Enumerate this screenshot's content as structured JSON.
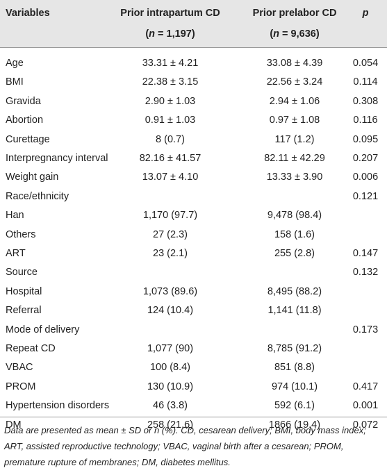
{
  "table": {
    "header": [
      {
        "label": "Variables"
      },
      {
        "label": "Prior intrapartum CD",
        "n": {
          "open": "(",
          "var": "n",
          "rest": " = 1,197)"
        }
      },
      {
        "label": "Prior prelabor CD",
        "n": {
          "open": "(",
          "var": "n",
          "rest": " = 9,636)"
        }
      },
      {
        "label": "p"
      }
    ],
    "rows": [
      [
        "Age",
        "33.31 ± 4.21",
        "33.08 ± 4.39",
        "0.054"
      ],
      [
        "BMI",
        "22.38 ± 3.15",
        "22.56 ± 3.24",
        "0.114"
      ],
      [
        "Gravida",
        "2.90 ± 1.03",
        "2.94 ± 1.06",
        "0.308"
      ],
      [
        "Abortion",
        "0.91 ± 1.03",
        "0.97 ± 1.08",
        "0.116"
      ],
      [
        "Curettage",
        "8 (0.7)",
        "117 (1.2)",
        "0.095"
      ],
      [
        "Interpregnancy interval",
        "82.16 ± 41.57",
        "82.11 ± 42.29",
        "0.207"
      ],
      [
        "Weight gain",
        "13.07 ± 4.10",
        "13.33 ± 3.90",
        "0.006"
      ],
      [
        "Race/ethnicity",
        null,
        null,
        "0.121"
      ],
      [
        "Han",
        "1,170 (97.7)",
        "9,478 (98.4)",
        null
      ],
      [
        "Others",
        "27 (2.3)",
        "158 (1.6)",
        null
      ],
      [
        "ART",
        "23 (2.1)",
        "255 (2.8)",
        "0.147"
      ],
      [
        "Source",
        null,
        null,
        "0.132"
      ],
      [
        "Hospital",
        "1,073 (89.6)",
        "8,495 (88.2)",
        null
      ],
      [
        "Referral",
        "124 (10.4)",
        "1,141 (11.8)",
        null
      ],
      [
        "Mode of delivery",
        null,
        null,
        "0.173"
      ],
      [
        "Repeat CD",
        "1,077 (90)",
        "8,785 (91.2)",
        null
      ],
      [
        "VBAC",
        "100 (8.4)",
        "851 (8.8)",
        null
      ],
      [
        "PROM",
        "130 (10.9)",
        "974 (10.1)",
        "0.417"
      ],
      [
        "Hypertension disorders",
        "46 (3.8)",
        "592 (6.1)",
        "0.001"
      ],
      [
        "DM",
        "258 (21.6)",
        "1866 (19.4)",
        "0.072"
      ]
    ],
    "footnote": [
      "Data are presented as mean ± SD or n (%). CD, cesarean delivery; BMI, body mass index;",
      "ART, assisted reproductive technology; VBAC, vaginal birth after a cesarean; PROM,",
      "premature rupture of membranes; DM, diabetes mellitus."
    ]
  }
}
